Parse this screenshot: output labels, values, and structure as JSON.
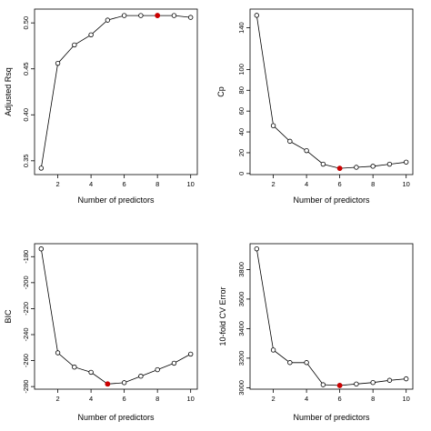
{
  "chart_data": [
    {
      "type": "line",
      "xlabel": "Number of predictors",
      "ylabel": "Adjusted Rsq",
      "x": [
        1,
        2,
        3,
        4,
        5,
        6,
        7,
        8,
        9,
        10
      ],
      "values": [
        0.342,
        0.456,
        0.476,
        0.487,
        0.503,
        0.508,
        0.508,
        0.508,
        0.508,
        0.506
      ],
      "highlight_index": 7,
      "xlim": [
        0.6,
        10.4
      ],
      "ylim": [
        0.335,
        0.515
      ],
      "xticks": [
        "2",
        "4",
        "6",
        "8",
        "10"
      ],
      "yticks": [
        "0.35",
        "0.40",
        "0.45",
        "0.50"
      ]
    },
    {
      "type": "line",
      "xlabel": "Number of predictors",
      "ylabel": "Cp",
      "x": [
        1,
        2,
        3,
        4,
        5,
        6,
        7,
        8,
        9,
        10
      ],
      "values": [
        152,
        46,
        31,
        22,
        9,
        5,
        6,
        7,
        9,
        11
      ],
      "highlight_index": 5,
      "xlim": [
        0.6,
        10.4
      ],
      "ylim": [
        -1,
        158
      ],
      "xticks": [
        "2",
        "4",
        "6",
        "8",
        "10"
      ],
      "yticks": [
        "0",
        "20",
        "40",
        "60",
        "80",
        "100",
        "140"
      ]
    },
    {
      "type": "line",
      "xlabel": "Number of predictors",
      "ylabel": "BIC",
      "x": [
        1,
        2,
        3,
        4,
        5,
        6,
        7,
        8,
        9,
        10
      ],
      "values": [
        -174,
        -254,
        -265,
        -269,
        -278,
        -277,
        -272,
        -267,
        -262,
        -255
      ],
      "highlight_index": 4,
      "xlim": [
        0.6,
        10.4
      ],
      "ylim": [
        -282,
        -170
      ],
      "xticks": [
        "2",
        "4",
        "6",
        "8",
        "10"
      ],
      "yticks": [
        "-280",
        "-260",
        "-240",
        "-220",
        "-200",
        "-180"
      ]
    },
    {
      "type": "line",
      "xlabel": "Number of predictors",
      "ylabel": "10-fold CV Error",
      "x": [
        1,
        2,
        3,
        4,
        5,
        6,
        7,
        8,
        9,
        10
      ],
      "values": [
        3940,
        3255,
        3170,
        3170,
        3020,
        3015,
        3025,
        3035,
        3050,
        3060
      ],
      "highlight_index": 5,
      "xlim": [
        0.6,
        10.4
      ],
      "ylim": [
        2990,
        3975
      ],
      "xticks": [
        "2",
        "4",
        "6",
        "8",
        "10"
      ],
      "yticks": [
        "3000",
        "3200",
        "3400",
        "3600",
        "3800"
      ]
    }
  ],
  "colors": {
    "line": "#000000",
    "highlight": "#cc0000"
  }
}
